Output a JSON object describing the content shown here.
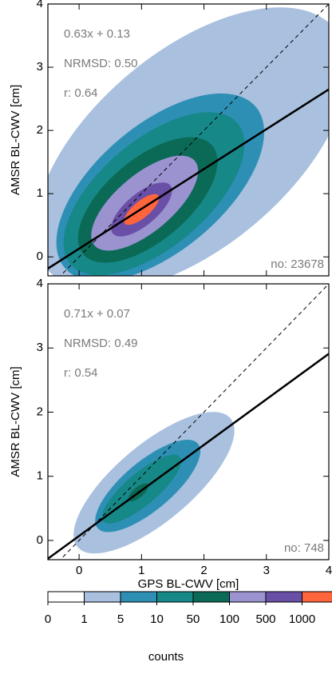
{
  "chart_data": [
    {
      "type": "contour",
      "y_label": "AMSR BL-CWV [cm]",
      "xlim": [
        -0.5,
        4
      ],
      "ylim": [
        -0.3,
        4
      ],
      "xticks": [
        0,
        1,
        2,
        3,
        4
      ],
      "yticks": [
        0,
        1,
        2,
        3,
        4
      ],
      "fit": {
        "slope": 0.63,
        "intercept": 0.13
      },
      "fit_label": "0.63x + 0.13",
      "nrmsd_label": "NRMSD:  0.50",
      "r_label": "r:  0.64",
      "n_label": "no: 23678",
      "fit_color": "#000000"
    },
    {
      "type": "contour",
      "y_label": "AMSR BL-CWV [cm]",
      "x_label": "GPS BL-CWV [cm]",
      "xlim": [
        -0.5,
        4
      ],
      "ylim": [
        -0.3,
        4
      ],
      "xticks": [
        0,
        1,
        2,
        3,
        4
      ],
      "yticks": [
        0,
        1,
        2,
        3,
        4
      ],
      "fit": {
        "slope": 0.71,
        "intercept": 0.07
      },
      "fit_label": "0.71x + 0.07",
      "nrmsd_label": "NRMSD:  0.49",
      "r_label": "r:  0.54",
      "n_label": "no: 748",
      "fit_color": "#000000"
    },
    {
      "type": "colorbar",
      "label": "counts",
      "levels": [
        0,
        1,
        5,
        10,
        50,
        100,
        500,
        1000
      ],
      "colors": [
        "#ffffff",
        "#a9c0df",
        "#2e8fb5",
        "#178888",
        "#0b6a56",
        "#9b92d0",
        "#6a4fa6",
        "#ff653c"
      ]
    }
  ]
}
